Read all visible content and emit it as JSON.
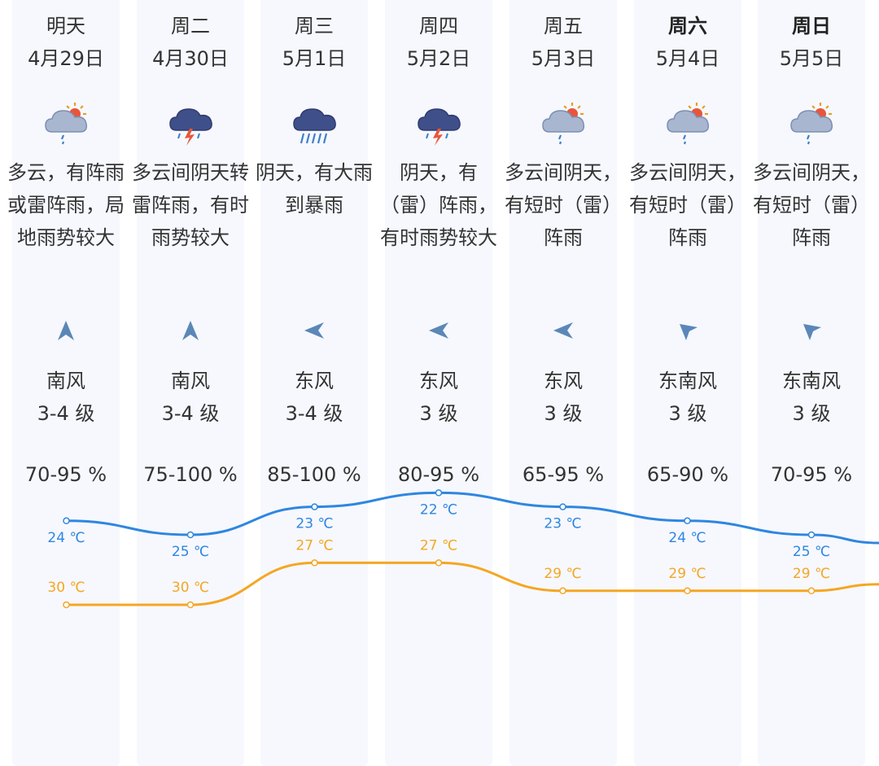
{
  "days": [
    {
      "name": "明天",
      "date": "4月29日",
      "bold": false,
      "icon": "cloud-sun-rain-icon",
      "desc": "多云，有阵雨或雷阵雨，局地雨势较大",
      "wind_dir": "南风",
      "wind_level": "3-4 级",
      "wind_arrow": "arrow-up-icon",
      "humidity": "70-95 %",
      "high": "30 ℃",
      "low": "24 ℃"
    },
    {
      "name": "周二",
      "date": "4月30日",
      "bold": false,
      "icon": "thunderstorm-icon",
      "desc": "多云间阴天转雷阵雨，有时雨势较大",
      "wind_dir": "南风",
      "wind_level": "3-4 级",
      "wind_arrow": "arrow-up-icon",
      "humidity": "75-100 %",
      "high": "30 ℃",
      "low": "25 ℃"
    },
    {
      "name": "周三",
      "date": "5月1日",
      "bold": false,
      "icon": "heavy-rain-icon",
      "desc": "阴天，有大雨到暴雨",
      "wind_dir": "东风",
      "wind_level": "3-4 级",
      "wind_arrow": "arrow-left-icon",
      "humidity": "85-100 %",
      "high": "27 ℃",
      "low": "23 ℃"
    },
    {
      "name": "周四",
      "date": "5月2日",
      "bold": false,
      "icon": "thunderstorm-icon",
      "desc": "阴天，有（雷）阵雨，有时雨势较大",
      "wind_dir": "东风",
      "wind_level": "3 级",
      "wind_arrow": "arrow-left-icon",
      "humidity": "80-95 %",
      "high": "27 ℃",
      "low": "22 ℃"
    },
    {
      "name": "周五",
      "date": "5月3日",
      "bold": false,
      "icon": "cloud-sun-rain-icon",
      "desc": "多云间阴天，有短时（雷）阵雨",
      "wind_dir": "东风",
      "wind_level": "3 级",
      "wind_arrow": "arrow-left-icon",
      "humidity": "65-95 %",
      "high": "29 ℃",
      "low": "23 ℃"
    },
    {
      "name": "周六",
      "date": "5月4日",
      "bold": true,
      "icon": "cloud-sun-rain-icon",
      "desc": "多云间阴天，有短时（雷）阵雨",
      "wind_dir": "东南风",
      "wind_level": "3 级",
      "wind_arrow": "arrow-upleft-icon",
      "humidity": "65-90 %",
      "high": "29 ℃",
      "low": "24 ℃"
    },
    {
      "name": "周日",
      "date": "5月5日",
      "bold": true,
      "icon": "cloud-sun-rain-icon",
      "desc": "多云间阴天，有短时（雷）阵雨",
      "wind_dir": "东南风",
      "wind_level": "3 级",
      "wind_arrow": "arrow-upleft-icon",
      "humidity": "70-95 %",
      "high": "29 ℃",
      "low": "25 ℃"
    }
  ],
  "chart_data": {
    "type": "line",
    "categories": [
      "4月29日",
      "4月30日",
      "5月1日",
      "5月2日",
      "5月3日",
      "5月4日",
      "5月5日"
    ],
    "series": [
      {
        "values": [
          30,
          30,
          27,
          27,
          29,
          29,
          29
        ],
        "color": "#f5a623"
      },
      {
        "values": [
          24,
          25,
          23,
          22,
          23,
          24,
          25
        ],
        "color": "#2f86e0"
      }
    ],
    "unit": "℃"
  },
  "colors": {
    "high": "#f5a623",
    "low": "#2f86e0",
    "arrow": "#5b87b8",
    "column_bg": "#f6f8fd"
  }
}
